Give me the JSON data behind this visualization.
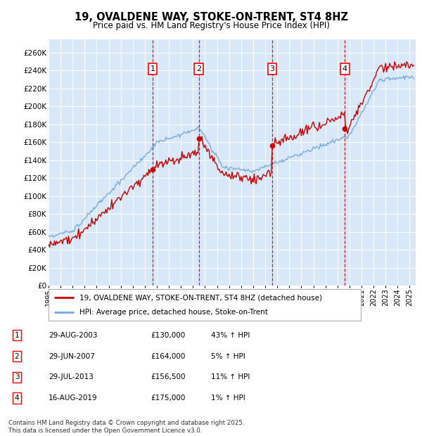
{
  "title": "19, OVALDENE WAY, STOKE-ON-TRENT, ST4 8HZ",
  "subtitle": "Price paid vs. HM Land Registry's House Price Index (HPI)",
  "ylim": [
    0,
    275000
  ],
  "yticks": [
    0,
    20000,
    40000,
    60000,
    80000,
    100000,
    120000,
    140000,
    160000,
    180000,
    200000,
    220000,
    240000,
    260000
  ],
  "ytick_labels": [
    "£0",
    "£20K",
    "£40K",
    "£60K",
    "£80K",
    "£100K",
    "£120K",
    "£140K",
    "£160K",
    "£180K",
    "£200K",
    "£220K",
    "£240K",
    "£260K"
  ],
  "hpi_color": "#7aaadd",
  "price_color": "#cc0000",
  "background_color": "#d8e8f8",
  "grid_color": "#ffffff",
  "purchases": [
    {
      "num": 1,
      "date_str": "29-AUG-2003",
      "price": 130000,
      "hpi_pct": "43%",
      "x_year": 2003.66
    },
    {
      "num": 2,
      "date_str": "29-JUN-2007",
      "price": 164000,
      "hpi_pct": "5%",
      "x_year": 2007.49
    },
    {
      "num": 3,
      "date_str": "29-JUL-2013",
      "price": 156500,
      "hpi_pct": "11%",
      "x_year": 2013.57
    },
    {
      "num": 4,
      "date_str": "16-AUG-2019",
      "price": 175000,
      "hpi_pct": "1%",
      "x_year": 2019.62
    }
  ],
  "legend_entries": [
    "19, OVALDENE WAY, STOKE-ON-TRENT, ST4 8HZ (detached house)",
    "HPI: Average price, detached house, Stoke-on-Trent"
  ],
  "footnote": "Contains HM Land Registry data © Crown copyright and database right 2025.\nThis data is licensed under the Open Government Licence v3.0.",
  "xmin": 1995,
  "xmax": 2025.5
}
